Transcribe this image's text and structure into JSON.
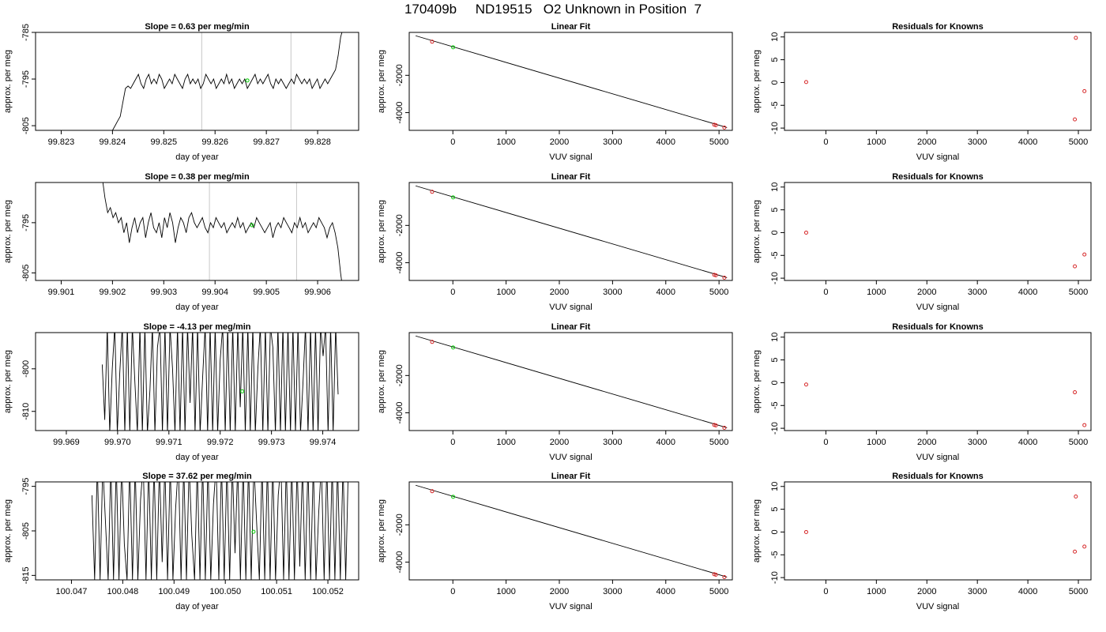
{
  "figure_title": "170409b     ND19515   O2 Unknown in Position  7",
  "colors": {
    "trace": "#000000",
    "known": "#d62728",
    "unknown": "#00cc00",
    "grid": "#c8c8c8",
    "fit": "#000000"
  },
  "chart_data": [
    {
      "type": "line",
      "title": "Slope =  0.63  per meg/min",
      "xlabel": "day of year",
      "ylabel": "approx. per meg",
      "xlim": [
        99.8225,
        99.8288
      ],
      "ylim": [
        -806,
        -785
      ],
      "xticks": [
        "99.823",
        "99.824",
        "99.825",
        "99.826",
        "99.827",
        "99.828"
      ],
      "yticks": [
        "-785",
        "-795",
        "-805"
      ],
      "vlines": [
        99.82574,
        99.82748
      ],
      "unknown_point": [
        99.82663,
        -795.3
      ],
      "trace": {
        "x_start": 99.824,
        "x_end": 99.8285,
        "values": [
          -806,
          -805,
          -804,
          -803,
          -800,
          -797,
          -796.5,
          -797,
          -796,
          -795,
          -794,
          -796,
          -797,
          -795,
          -794,
          -796,
          -795,
          -796,
          -794,
          -795,
          -797,
          -796,
          -795,
          -796,
          -794,
          -795,
          -796,
          -797,
          -795,
          -794,
          -796,
          -795,
          -796,
          -795,
          -797,
          -796,
          -794,
          -795,
          -796,
          -795,
          -797,
          -796,
          -795,
          -796,
          -794,
          -796,
          -795,
          -797,
          -796,
          -795,
          -796,
          -795,
          -797,
          -796,
          -795,
          -794,
          -796,
          -795,
          -796,
          -795,
          -794,
          -796,
          -797,
          -795,
          -796,
          -795,
          -796,
          -797,
          -796,
          -795,
          -796,
          -794,
          -795,
          -796,
          -795,
          -796,
          -795,
          -797,
          -796,
          -795,
          -797,
          -796,
          -795,
          -796,
          -795,
          -794,
          -793,
          -790,
          -786,
          -784
        ]
      }
    },
    {
      "type": "scatter",
      "title": "Linear Fit",
      "xlabel": "VUV signal",
      "ylabel": "approx. per meg",
      "xlim": [
        -820,
        5250
      ],
      "ylim": [
        -4950,
        300
      ],
      "xticks": [
        0,
        1000,
        2000,
        3000,
        4000,
        5000
      ],
      "yticks": [
        -2000,
        -4000
      ],
      "fit_line": [
        [
          -700,
          120
        ],
        [
          5150,
          -4800
        ]
      ],
      "knowns": [
        [
          -390,
          -200
        ],
        [
          4910,
          -4650
        ],
        [
          4940,
          -4675
        ],
        [
          5100,
          -4800
        ]
      ],
      "unknown": [
        [
          5,
          -500
        ]
      ]
    },
    {
      "type": "scatter",
      "title": "Residuals for Knowns",
      "xlabel": "VUV signal",
      "ylabel": "approx. per meg",
      "xlim": [
        -820,
        5250
      ],
      "ylim": [
        -10.5,
        11
      ],
      "xticks": [
        0,
        1000,
        2000,
        3000,
        4000,
        5000
      ],
      "yticks": [
        10,
        5,
        0,
        -5,
        -10
      ],
      "points": [
        [
          -390,
          0.1
        ],
        [
          4950,
          9.8
        ],
        [
          5120,
          -1.9
        ],
        [
          4930,
          -8.1
        ]
      ]
    },
    {
      "type": "line",
      "title": "Slope =  0.38  per meg/min",
      "xlabel": "day of year",
      "ylabel": "approx. per meg",
      "xlim": [
        99.9005,
        99.9068
      ],
      "ylim": [
        -806.5,
        -787
      ],
      "xticks": [
        "99.901",
        "99.902",
        "99.903",
        "99.904",
        "99.905",
        "99.906"
      ],
      "yticks": [
        "-795",
        "-805"
      ],
      "vlines": [
        99.90389,
        99.90559
      ],
      "unknown_point": [
        99.90472,
        -795.5
      ],
      "trace": {
        "x_start": 99.9018,
        "x_end": 99.9065,
        "values": [
          -786,
          -790,
          -793,
          -792,
          -794,
          -793,
          -795,
          -794,
          -797,
          -795,
          -799,
          -796,
          -794,
          -797,
          -795,
          -794,
          -798,
          -795,
          -793,
          -796,
          -797,
          -795,
          -798,
          -794,
          -796,
          -793,
          -795,
          -799,
          -796,
          -794,
          -795,
          -797,
          -794,
          -793,
          -795,
          -796,
          -795,
          -794,
          -796,
          -797,
          -795,
          -796,
          -794,
          -795,
          -796,
          -795,
          -797,
          -796,
          -795,
          -796,
          -794,
          -796,
          -795,
          -797,
          -796,
          -795,
          -796,
          -794,
          -795,
          -796,
          -797,
          -796,
          -795,
          -798,
          -796,
          -795,
          -796,
          -794,
          -795,
          -796,
          -797,
          -795,
          -796,
          -794,
          -796,
          -795,
          -797,
          -796,
          -795,
          -796,
          -794,
          -795,
          -796,
          -798,
          -796,
          -795,
          -797,
          -800,
          -805,
          -809
        ]
      }
    },
    {
      "type": "scatter",
      "title": "Linear Fit",
      "xlabel": "VUV signal",
      "ylabel": "approx. per meg",
      "xlim": [
        -820,
        5250
      ],
      "ylim": [
        -4950,
        300
      ],
      "xticks": [
        0,
        1000,
        2000,
        3000,
        4000,
        5000
      ],
      "yticks": [
        -2000,
        -4000
      ],
      "fit_line": [
        [
          -700,
          120
        ],
        [
          5150,
          -4800
        ]
      ],
      "knowns": [
        [
          -390,
          -200
        ],
        [
          4910,
          -4650
        ],
        [
          4940,
          -4675
        ],
        [
          5100,
          -4800
        ]
      ],
      "unknown": [
        [
          5,
          -500
        ]
      ]
    },
    {
      "type": "scatter",
      "title": "Residuals for Knowns",
      "xlabel": "VUV signal",
      "ylabel": "approx. per meg",
      "xlim": [
        -820,
        5250
      ],
      "ylim": [
        -10.5,
        11
      ],
      "xticks": [
        0,
        1000,
        2000,
        3000,
        4000,
        5000
      ],
      "yticks": [
        10,
        5,
        0,
        -5,
        -10
      ],
      "points": [
        [
          -390,
          0.0
        ],
        [
          5120,
          -4.8
        ],
        [
          4930,
          -7.4
        ]
      ]
    },
    {
      "type": "line",
      "title": "Slope =  -4.13  per meg/min",
      "xlabel": "day of year",
      "ylabel": "approx. per meg",
      "xlim": [
        99.9684,
        99.9747
      ],
      "ylim": [
        -814.5,
        -791.5
      ],
      "xticks": [
        "99.969",
        "99.970",
        "99.971",
        "99.972",
        "99.973",
        "99.974"
      ],
      "yticks": [
        "-800",
        "-810"
      ],
      "vlines": [],
      "unknown_point": [
        99.97243,
        -805.3
      ],
      "trace": {
        "x_start": 99.9697,
        "x_end": 99.9743,
        "values": [
          -799,
          -812,
          -790,
          -815,
          -800,
          -790,
          -815,
          -801,
          -790,
          -815,
          -790,
          -815,
          -790,
          -803,
          -815,
          -790,
          -815,
          -790,
          -815,
          -805,
          -790,
          -815,
          -795,
          -790,
          -815,
          -790,
          -815,
          -790,
          -800,
          -815,
          -790,
          -815,
          -790,
          -815,
          -790,
          -808,
          -790,
          -815,
          -790,
          -815,
          -802,
          -790,
          -815,
          -790,
          -815,
          -790,
          -815,
          -798,
          -790,
          -815,
          -790,
          -815,
          -790,
          -815,
          -790,
          -809,
          -790,
          -815,
          -790,
          -815,
          -790,
          -815,
          -800,
          -790,
          -815,
          -790,
          -815,
          -790,
          -795,
          -815,
          -790,
          -815,
          -790,
          -815,
          -790,
          -815,
          -790,
          -815,
          -790,
          -815,
          -803,
          -790,
          -815,
          -790,
          -815,
          -790,
          -815,
          -790,
          -797,
          -790,
          -815,
          -790,
          -815,
          -790,
          -806
        ]
      }
    },
    {
      "type": "scatter",
      "title": "Linear Fit",
      "xlabel": "VUV signal",
      "ylabel": "approx. per meg",
      "xlim": [
        -820,
        5250
      ],
      "ylim": [
        -4950,
        300
      ],
      "xticks": [
        0,
        1000,
        2000,
        3000,
        4000,
        5000
      ],
      "yticks": [
        -2000,
        -4000
      ],
      "fit_line": [
        [
          -700,
          120
        ],
        [
          5150,
          -4800
        ]
      ],
      "knowns": [
        [
          -390,
          -200
        ],
        [
          4910,
          -4650
        ],
        [
          4940,
          -4675
        ],
        [
          5100,
          -4800
        ]
      ],
      "unknown": [
        [
          5,
          -500
        ]
      ]
    },
    {
      "type": "scatter",
      "title": "Residuals for Knowns",
      "xlabel": "VUV signal",
      "ylabel": "approx. per meg",
      "xlim": [
        -820,
        5250
      ],
      "ylim": [
        -10.5,
        11
      ],
      "xticks": [
        0,
        1000,
        2000,
        3000,
        4000,
        5000
      ],
      "yticks": [
        10,
        5,
        0,
        -5,
        -10
      ],
      "points": [
        [
          -390,
          -0.4
        ],
        [
          4930,
          -2.1
        ],
        [
          5120,
          -9.3
        ]
      ]
    },
    {
      "type": "line",
      "title": "Slope =  37.62  per meg/min",
      "xlabel": "day of year",
      "ylabel": "approx. per meg",
      "xlim": [
        100.0463,
        100.0526
      ],
      "ylim": [
        -816,
        -794
      ],
      "xticks": [
        "100.047",
        "100.048",
        "100.049",
        "100.050",
        "100.051",
        "100.052"
      ],
      "yticks": [
        "-795",
        "-805",
        "-815"
      ],
      "vlines": [],
      "unknown_point": [
        100.05055,
        -805.2
      ],
      "trace": {
        "x_start": 100.0474,
        "x_end": 100.0524,
        "values": [
          -797,
          -816,
          -790,
          -816,
          -790,
          -803,
          -816,
          -790,
          -816,
          -790,
          -816,
          -790,
          -808,
          -816,
          -790,
          -816,
          -790,
          -816,
          -798,
          -790,
          -816,
          -790,
          -816,
          -790,
          -816,
          -790,
          -812,
          -790,
          -816,
          -790,
          -816,
          -800,
          -790,
          -816,
          -790,
          -816,
          -790,
          -806,
          -816,
          -790,
          -816,
          -790,
          -816,
          -790,
          -816,
          -799,
          -790,
          -816,
          -790,
          -816,
          -790,
          -816,
          -790,
          -810,
          -790,
          -816,
          -790,
          -816,
          -790,
          -816,
          -790,
          -803,
          -816,
          -790,
          -816,
          -790,
          -816,
          -790,
          -816,
          -797,
          -790,
          -816,
          -790,
          -816,
          -790,
          -816,
          -790,
          -813,
          -790,
          -816,
          -790,
          -816,
          -790,
          -816,
          -801,
          -790,
          -816,
          -790,
          -816,
          -790,
          -816,
          -790,
          -816,
          -790,
          -816,
          -790
        ]
      }
    },
    {
      "type": "scatter",
      "title": "Linear Fit",
      "xlabel": "VUV signal",
      "ylabel": "approx. per meg",
      "xlim": [
        -820,
        5250
      ],
      "ylim": [
        -4950,
        300
      ],
      "xticks": [
        0,
        1000,
        2000,
        3000,
        4000,
        5000
      ],
      "yticks": [
        -2000,
        -4000
      ],
      "fit_line": [
        [
          -700,
          120
        ],
        [
          5150,
          -4800
        ]
      ],
      "knowns": [
        [
          -390,
          -200
        ],
        [
          4910,
          -4650
        ],
        [
          4940,
          -4675
        ],
        [
          5100,
          -4800
        ]
      ],
      "unknown": [
        [
          5,
          -500
        ]
      ]
    },
    {
      "type": "scatter",
      "title": "Residuals for Knowns",
      "xlabel": "VUV signal",
      "ylabel": "approx. per meg",
      "xlim": [
        -820,
        5250
      ],
      "ylim": [
        -10.5,
        11
      ],
      "xticks": [
        0,
        1000,
        2000,
        3000,
        4000,
        5000
      ],
      "yticks": [
        10,
        5,
        0,
        -5,
        -10
      ],
      "points": [
        [
          -390,
          0.0
        ],
        [
          4950,
          7.8
        ],
        [
          5120,
          -3.2
        ],
        [
          4930,
          -4.3
        ]
      ]
    }
  ]
}
